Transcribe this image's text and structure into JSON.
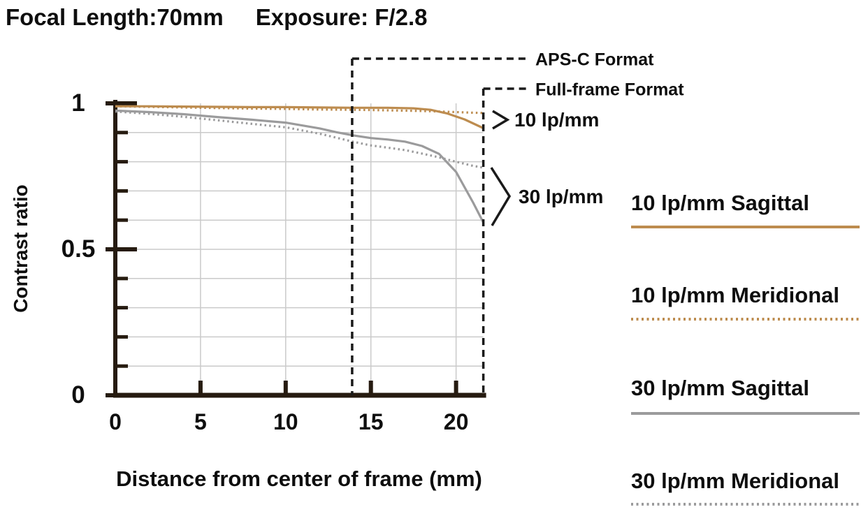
{
  "header": {
    "focal_length_label": "Focal Length:70mm",
    "exposure_label": "Exposure: F/2.8"
  },
  "colors": {
    "orange": "#BD8C4F",
    "gray": "#9B9B9C",
    "axis": "#261B10",
    "grid": "#CACACA",
    "marker_line": "#1A1A1A",
    "text": "#0E0E0E"
  },
  "chart_data": {
    "type": "line",
    "title": "Focal Length:70mm  Exposure: F/2.8",
    "xlabel": "Distance from center of frame (mm)",
    "ylabel": "Contrast ratio",
    "xlim": [
      0,
      21.6
    ],
    "ylim": [
      0,
      1
    ],
    "grid": true,
    "legend_position": "right",
    "x_ticks": [
      {
        "label": "0",
        "value": 0
      },
      {
        "label": "5",
        "value": 5
      },
      {
        "label": "10",
        "value": 10
      },
      {
        "label": "15",
        "value": 15
      },
      {
        "label": "20",
        "value": 20
      }
    ],
    "y_ticks_major": [
      {
        "label": "1",
        "value": 1
      },
      {
        "label": "0.5",
        "value": 0.5
      },
      {
        "label": "0",
        "value": 0
      }
    ],
    "y_minor_tick_step": 0.1,
    "series": [
      {
        "name": "10 lp/mm Sagittal",
        "line_style": "solid",
        "color": "orange",
        "points": [
          [
            0,
            0.99
          ],
          [
            2,
            0.99
          ],
          [
            4,
            0.989
          ],
          [
            6,
            0.988
          ],
          [
            8,
            0.987
          ],
          [
            10,
            0.987
          ],
          [
            12,
            0.986
          ],
          [
            14,
            0.985
          ],
          [
            16,
            0.985
          ],
          [
            17.5,
            0.983
          ],
          [
            18.5,
            0.978
          ],
          [
            19.5,
            0.965
          ],
          [
            20.5,
            0.945
          ],
          [
            21.6,
            0.915
          ]
        ]
      },
      {
        "name": "10 lp/mm Meridional",
        "line_style": "dotted",
        "color": "orange",
        "points": [
          [
            0,
            0.99
          ],
          [
            2,
            0.988
          ],
          [
            4,
            0.986
          ],
          [
            6,
            0.984
          ],
          [
            8,
            0.982
          ],
          [
            10,
            0.981
          ],
          [
            12,
            0.979
          ],
          [
            14,
            0.978
          ],
          [
            16,
            0.976
          ],
          [
            18,
            0.974
          ],
          [
            19,
            0.972
          ],
          [
            20,
            0.97
          ],
          [
            21,
            0.968
          ],
          [
            21.6,
            0.967
          ]
        ]
      },
      {
        "name": "30 lp/mm Sagittal",
        "line_style": "solid",
        "color": "gray",
        "points": [
          [
            0,
            0.975
          ],
          [
            2,
            0.97
          ],
          [
            4,
            0.963
          ],
          [
            6,
            0.953
          ],
          [
            8,
            0.944
          ],
          [
            10,
            0.934
          ],
          [
            12,
            0.914
          ],
          [
            13,
            0.901
          ],
          [
            14,
            0.89
          ],
          [
            15,
            0.881
          ],
          [
            16,
            0.876
          ],
          [
            17,
            0.869
          ],
          [
            18,
            0.854
          ],
          [
            19,
            0.827
          ],
          [
            20,
            0.765
          ],
          [
            21,
            0.66
          ],
          [
            21.6,
            0.592
          ]
        ]
      },
      {
        "name": "30 lp/mm Meridional",
        "line_style": "dotted",
        "color": "gray",
        "points": [
          [
            0,
            0.972
          ],
          [
            2,
            0.964
          ],
          [
            4,
            0.954
          ],
          [
            6,
            0.942
          ],
          [
            8,
            0.93
          ],
          [
            10,
            0.918
          ],
          [
            12,
            0.896
          ],
          [
            13,
            0.882
          ],
          [
            14,
            0.868
          ],
          [
            15,
            0.856
          ],
          [
            16,
            0.848
          ],
          [
            17,
            0.84
          ],
          [
            18,
            0.828
          ],
          [
            19,
            0.815
          ],
          [
            20,
            0.8
          ],
          [
            21,
            0.786
          ],
          [
            21.6,
            0.78
          ]
        ]
      }
    ],
    "format_markers": [
      {
        "label": "APS-C Format",
        "x_mm": 13.9
      },
      {
        "label": "Full-frame Format",
        "x_mm": 21.6
      }
    ],
    "annotations": [
      {
        "label": "10 lp/mm"
      },
      {
        "label": "30 lp/mm"
      }
    ]
  }
}
